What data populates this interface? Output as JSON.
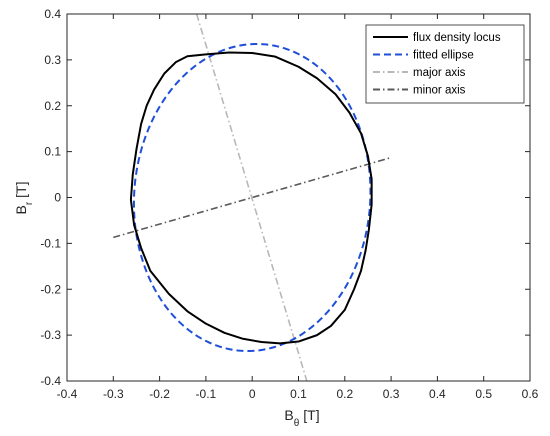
{
  "chart_data": {
    "type": "line",
    "title": "",
    "xlabel": {
      "main": "B",
      "sub": "θ",
      "unit": "[T]"
    },
    "ylabel": {
      "main": "B",
      "sub": "r",
      "unit": "[T]"
    },
    "xlim": [
      -0.4,
      0.6
    ],
    "ylim": [
      -0.4,
      0.4
    ],
    "xticks": [
      -0.4,
      -0.3,
      -0.2,
      -0.1,
      0,
      0.1,
      0.2,
      0.3,
      0.4,
      0.5,
      0.6
    ],
    "xtick_labels": [
      "-0.4",
      "-0.3",
      "-0.2",
      "-0.1",
      "0",
      "0.1",
      "0.2",
      "0.3",
      "0.4",
      "0.5",
      "0.6"
    ],
    "yticks": [
      -0.4,
      -0.3,
      -0.2,
      -0.1,
      0,
      0.1,
      0.2,
      0.3,
      0.4
    ],
    "ytick_labels": [
      "-0.4",
      "-0.3",
      "-0.2",
      "-0.1",
      "0",
      "0.1",
      "0.2",
      "0.3",
      "0.4"
    ],
    "grid": false,
    "legend_position": "top-right",
    "series": [
      {
        "name": "flux density locus",
        "color": "#000000",
        "dash": "solid",
        "x": [
          -0.1,
          -0.05,
          0.0,
          0.05,
          0.1,
          0.14,
          0.18,
          0.21,
          0.235,
          0.25,
          0.258,
          0.258,
          0.252,
          0.245,
          0.235,
          0.22,
          0.2,
          0.17,
          0.14,
          0.1,
          0.06,
          0.02,
          -0.02,
          -0.06,
          -0.1,
          -0.14,
          -0.18,
          -0.22,
          -0.24,
          -0.255,
          -0.262,
          -0.258,
          -0.25,
          -0.24,
          -0.228,
          -0.212,
          -0.19,
          -0.165,
          -0.14,
          -0.1
        ],
        "y": [
          0.312,
          0.316,
          0.315,
          0.307,
          0.285,
          0.26,
          0.225,
          0.185,
          0.14,
          0.09,
          0.04,
          -0.015,
          -0.07,
          -0.115,
          -0.16,
          -0.2,
          -0.245,
          -0.28,
          -0.3,
          -0.314,
          -0.318,
          -0.315,
          -0.308,
          -0.295,
          -0.275,
          -0.248,
          -0.21,
          -0.16,
          -0.11,
          -0.06,
          -0.005,
          0.05,
          0.105,
          0.16,
          0.2,
          0.235,
          0.27,
          0.295,
          0.308,
          0.312
        ]
      },
      {
        "name": "fitted ellipse",
        "color": "#1f4fd8",
        "dash": "dashed",
        "ellipse": {
          "cx": 0.0,
          "cy": 0.0,
          "rx": 0.255,
          "ry": 0.335,
          "tilt": -4
        }
      },
      {
        "name": "major axis",
        "color": "#b8b8b8",
        "dash": "dashdot",
        "x": [
          -0.12,
          0.118
        ],
        "y": [
          0.4,
          -0.4
        ]
      },
      {
        "name": "minor axis",
        "color": "#5a5a5a",
        "dash": "dashdot",
        "x": [
          -0.3,
          0.3
        ],
        "y": [
          -0.087,
          0.087
        ]
      }
    ]
  }
}
